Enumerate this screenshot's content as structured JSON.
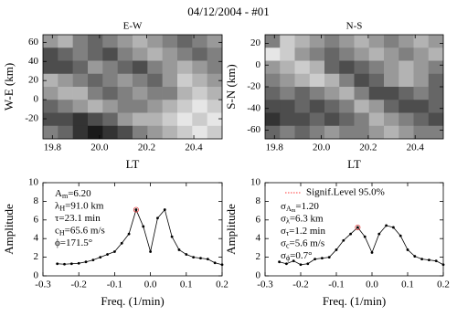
{
  "title": "04/12/2004 - #01",
  "chart_data": [
    {
      "type": "heatmap",
      "title": "E-W",
      "xlabel": "LT",
      "ylabel": "W-E (km)",
      "xlim": [
        19.76,
        20.52
      ],
      "ylim": [
        -41,
        68
      ],
      "xticks": [
        19.8,
        {
          "value": 20,
          "label": "20.0"
        },
        20.2,
        20.4
      ],
      "yticks": [
        60,
        40,
        20,
        0,
        -20
      ],
      "z": [
        [
          0.6,
          0.7,
          0.5,
          0.4,
          0.5,
          0.6,
          0.7,
          0.6,
          0.5,
          0.4,
          0.5,
          0.6
        ],
        [
          0.3,
          0.4,
          0.5,
          0.4,
          0.3,
          0.5,
          0.6,
          0.7,
          0.6,
          0.5,
          0.4,
          0.5
        ],
        [
          0.3,
          0.3,
          0.4,
          0.6,
          0.5,
          0.4,
          0.3,
          0.5,
          0.6,
          0.7,
          0.6,
          0.5
        ],
        [
          0.7,
          0.6,
          0.5,
          0.4,
          0.5,
          0.6,
          0.5,
          0.4,
          0.6,
          0.8,
          0.7,
          0.6
        ],
        [
          0.6,
          0.7,
          0.7,
          0.5,
          0.4,
          0.5,
          0.6,
          0.5,
          0.5,
          0.7,
          0.8,
          0.7
        ],
        [
          0.4,
          0.5,
          0.6,
          0.7,
          0.6,
          0.5,
          0.5,
          0.6,
          0.7,
          0.8,
          0.9,
          0.8
        ],
        [
          0.3,
          0.3,
          0.2,
          0.3,
          0.4,
          0.6,
          0.7,
          0.7,
          0.8,
          0.9,
          0.8,
          0.9
        ],
        [
          0.5,
          0.4,
          0.2,
          0.1,
          0.2,
          0.3,
          0.5,
          0.6,
          0.7,
          0.8,
          0.9,
          0.8
        ]
      ]
    },
    {
      "type": "heatmap",
      "title": "N-S",
      "xlabel": "LT",
      "ylabel": "S-N (km)",
      "xlim": [
        19.76,
        20.52
      ],
      "ylim": [
        -68,
        28
      ],
      "xticks": [
        19.8,
        {
          "value": 20,
          "label": "20.0"
        },
        20.2,
        20.4
      ],
      "yticks": [
        20,
        0,
        -20,
        -40,
        -60
      ],
      "z": [
        [
          0.5,
          0.8,
          0.7,
          0.6,
          0.5,
          0.6,
          0.7,
          0.6,
          0.5,
          0.6,
          0.7,
          0.6
        ],
        [
          0.9,
          0.8,
          0.6,
          0.5,
          0.4,
          0.5,
          0.6,
          0.7,
          0.6,
          0.5,
          0.6,
          0.7
        ],
        [
          0.6,
          0.7,
          0.8,
          0.7,
          0.4,
          0.3,
          0.4,
          0.5,
          0.6,
          0.7,
          0.6,
          0.5
        ],
        [
          0.5,
          0.6,
          0.7,
          0.8,
          0.7,
          0.5,
          0.3,
          0.4,
          0.6,
          0.7,
          0.6,
          0.4
        ],
        [
          0.4,
          0.5,
          0.4,
          0.5,
          0.6,
          0.7,
          0.5,
          0.3,
          0.3,
          0.4,
          0.5,
          0.4
        ],
        [
          0.3,
          0.3,
          0.4,
          0.3,
          0.4,
          0.5,
          0.7,
          0.6,
          0.4,
          0.3,
          0.3,
          0.4
        ],
        [
          0.2,
          0.3,
          0.3,
          0.4,
          0.3,
          0.4,
          0.5,
          0.7,
          0.6,
          0.5,
          0.4,
          0.3
        ],
        [
          0.4,
          0.5,
          0.4,
          0.5,
          0.6,
          0.5,
          0.5,
          0.6,
          0.7,
          0.6,
          0.5,
          0.5
        ]
      ]
    },
    {
      "type": "line",
      "xlabel": "Freq. (1/min)",
      "ylabel": "Amplitude",
      "xlim": [
        -0.3,
        0.2
      ],
      "ylim": [
        0,
        10
      ],
      "xticks": [
        -0.3,
        -0.2,
        -0.1,
        {
          "value": 0,
          "label": "0.0"
        },
        0.1,
        0.2
      ],
      "yticks": [
        0,
        2,
        4,
        6,
        8,
        10
      ],
      "x": [
        -0.26,
        -0.24,
        -0.22,
        -0.2,
        -0.18,
        -0.16,
        -0.14,
        -0.12,
        -0.1,
        -0.08,
        -0.06,
        -0.04,
        -0.02,
        0,
        0.02,
        0.04,
        0.06,
        0.08,
        0.1,
        0.12,
        0.14,
        0.16,
        0.18,
        0.2
      ],
      "series": [
        {
          "color": "#000000",
          "values": [
            1.3,
            1.25,
            1.3,
            1.35,
            1.5,
            1.7,
            2.0,
            2.3,
            2.6,
            3.5,
            4.5,
            7.1,
            5.3,
            2.6,
            6.2,
            7.1,
            4.2,
            2.8,
            2.3,
            2.0,
            1.9,
            1.8,
            1.4,
            1.2
          ]
        }
      ],
      "marker": {
        "x": -0.04,
        "y": 7.1,
        "color": "#e04040"
      },
      "annotations": [
        {
          "symbol": "A",
          "sub": "m",
          "text": "=6.20"
        },
        {
          "symbol": "λ",
          "sub": "H",
          "text": "=91.0 km"
        },
        {
          "symbol": "τ",
          "text": "=23.1 min"
        },
        {
          "symbol": "c",
          "sub": "H",
          "text": "=65.6 m/s"
        },
        {
          "symbol": "ϕ",
          "text": "=171.5°"
        }
      ]
    },
    {
      "type": "line",
      "xlabel": "Freq. (1/min)",
      "ylabel": "Amplitude",
      "xlim": [
        -0.3,
        0.2
      ],
      "ylim": [
        0,
        10
      ],
      "xticks": [
        -0.3,
        -0.2,
        -0.1,
        {
          "value": 0,
          "label": "0.0"
        },
        0.1,
        0.2
      ],
      "yticks": [
        0,
        2,
        4,
        6,
        8,
        10
      ],
      "x": [
        -0.26,
        -0.24,
        -0.22,
        -0.2,
        -0.18,
        -0.16,
        -0.14,
        -0.12,
        -0.1,
        -0.08,
        -0.06,
        -0.04,
        -0.02,
        0,
        0.02,
        0.04,
        0.06,
        0.08,
        0.1,
        0.12,
        0.14,
        0.16,
        0.18,
        0.2
      ],
      "series": [
        {
          "color": "#000000",
          "values": [
            1.5,
            1.3,
            1.6,
            1.2,
            1.3,
            1.8,
            1.9,
            2.0,
            2.8,
            3.8,
            4.5,
            5.2,
            4.2,
            2.5,
            4.5,
            5.4,
            5.2,
            4.3,
            2.8,
            2.1,
            1.8,
            1.7,
            1.6,
            1.2
          ]
        }
      ],
      "marker": {
        "x": -0.04,
        "y": 5.2,
        "color": "#e04040"
      },
      "legend": {
        "label": "Signif.Level 95.0%",
        "color": "#ff6060"
      },
      "annotations": [
        {
          "symbol": "σ",
          "sub": "A",
          "subsub": "m",
          "text": "=1.20"
        },
        {
          "symbol": "σ",
          "sub": "λ",
          "text": "=6.3 km"
        },
        {
          "symbol": "σ",
          "sub": "τ",
          "text": "=1.2 min"
        },
        {
          "symbol": "σ",
          "sub": "c",
          "text": "=5.6 m/s"
        },
        {
          "symbol": "σ",
          "sub": "ϕ",
          "text": "=0.7°"
        }
      ]
    }
  ]
}
